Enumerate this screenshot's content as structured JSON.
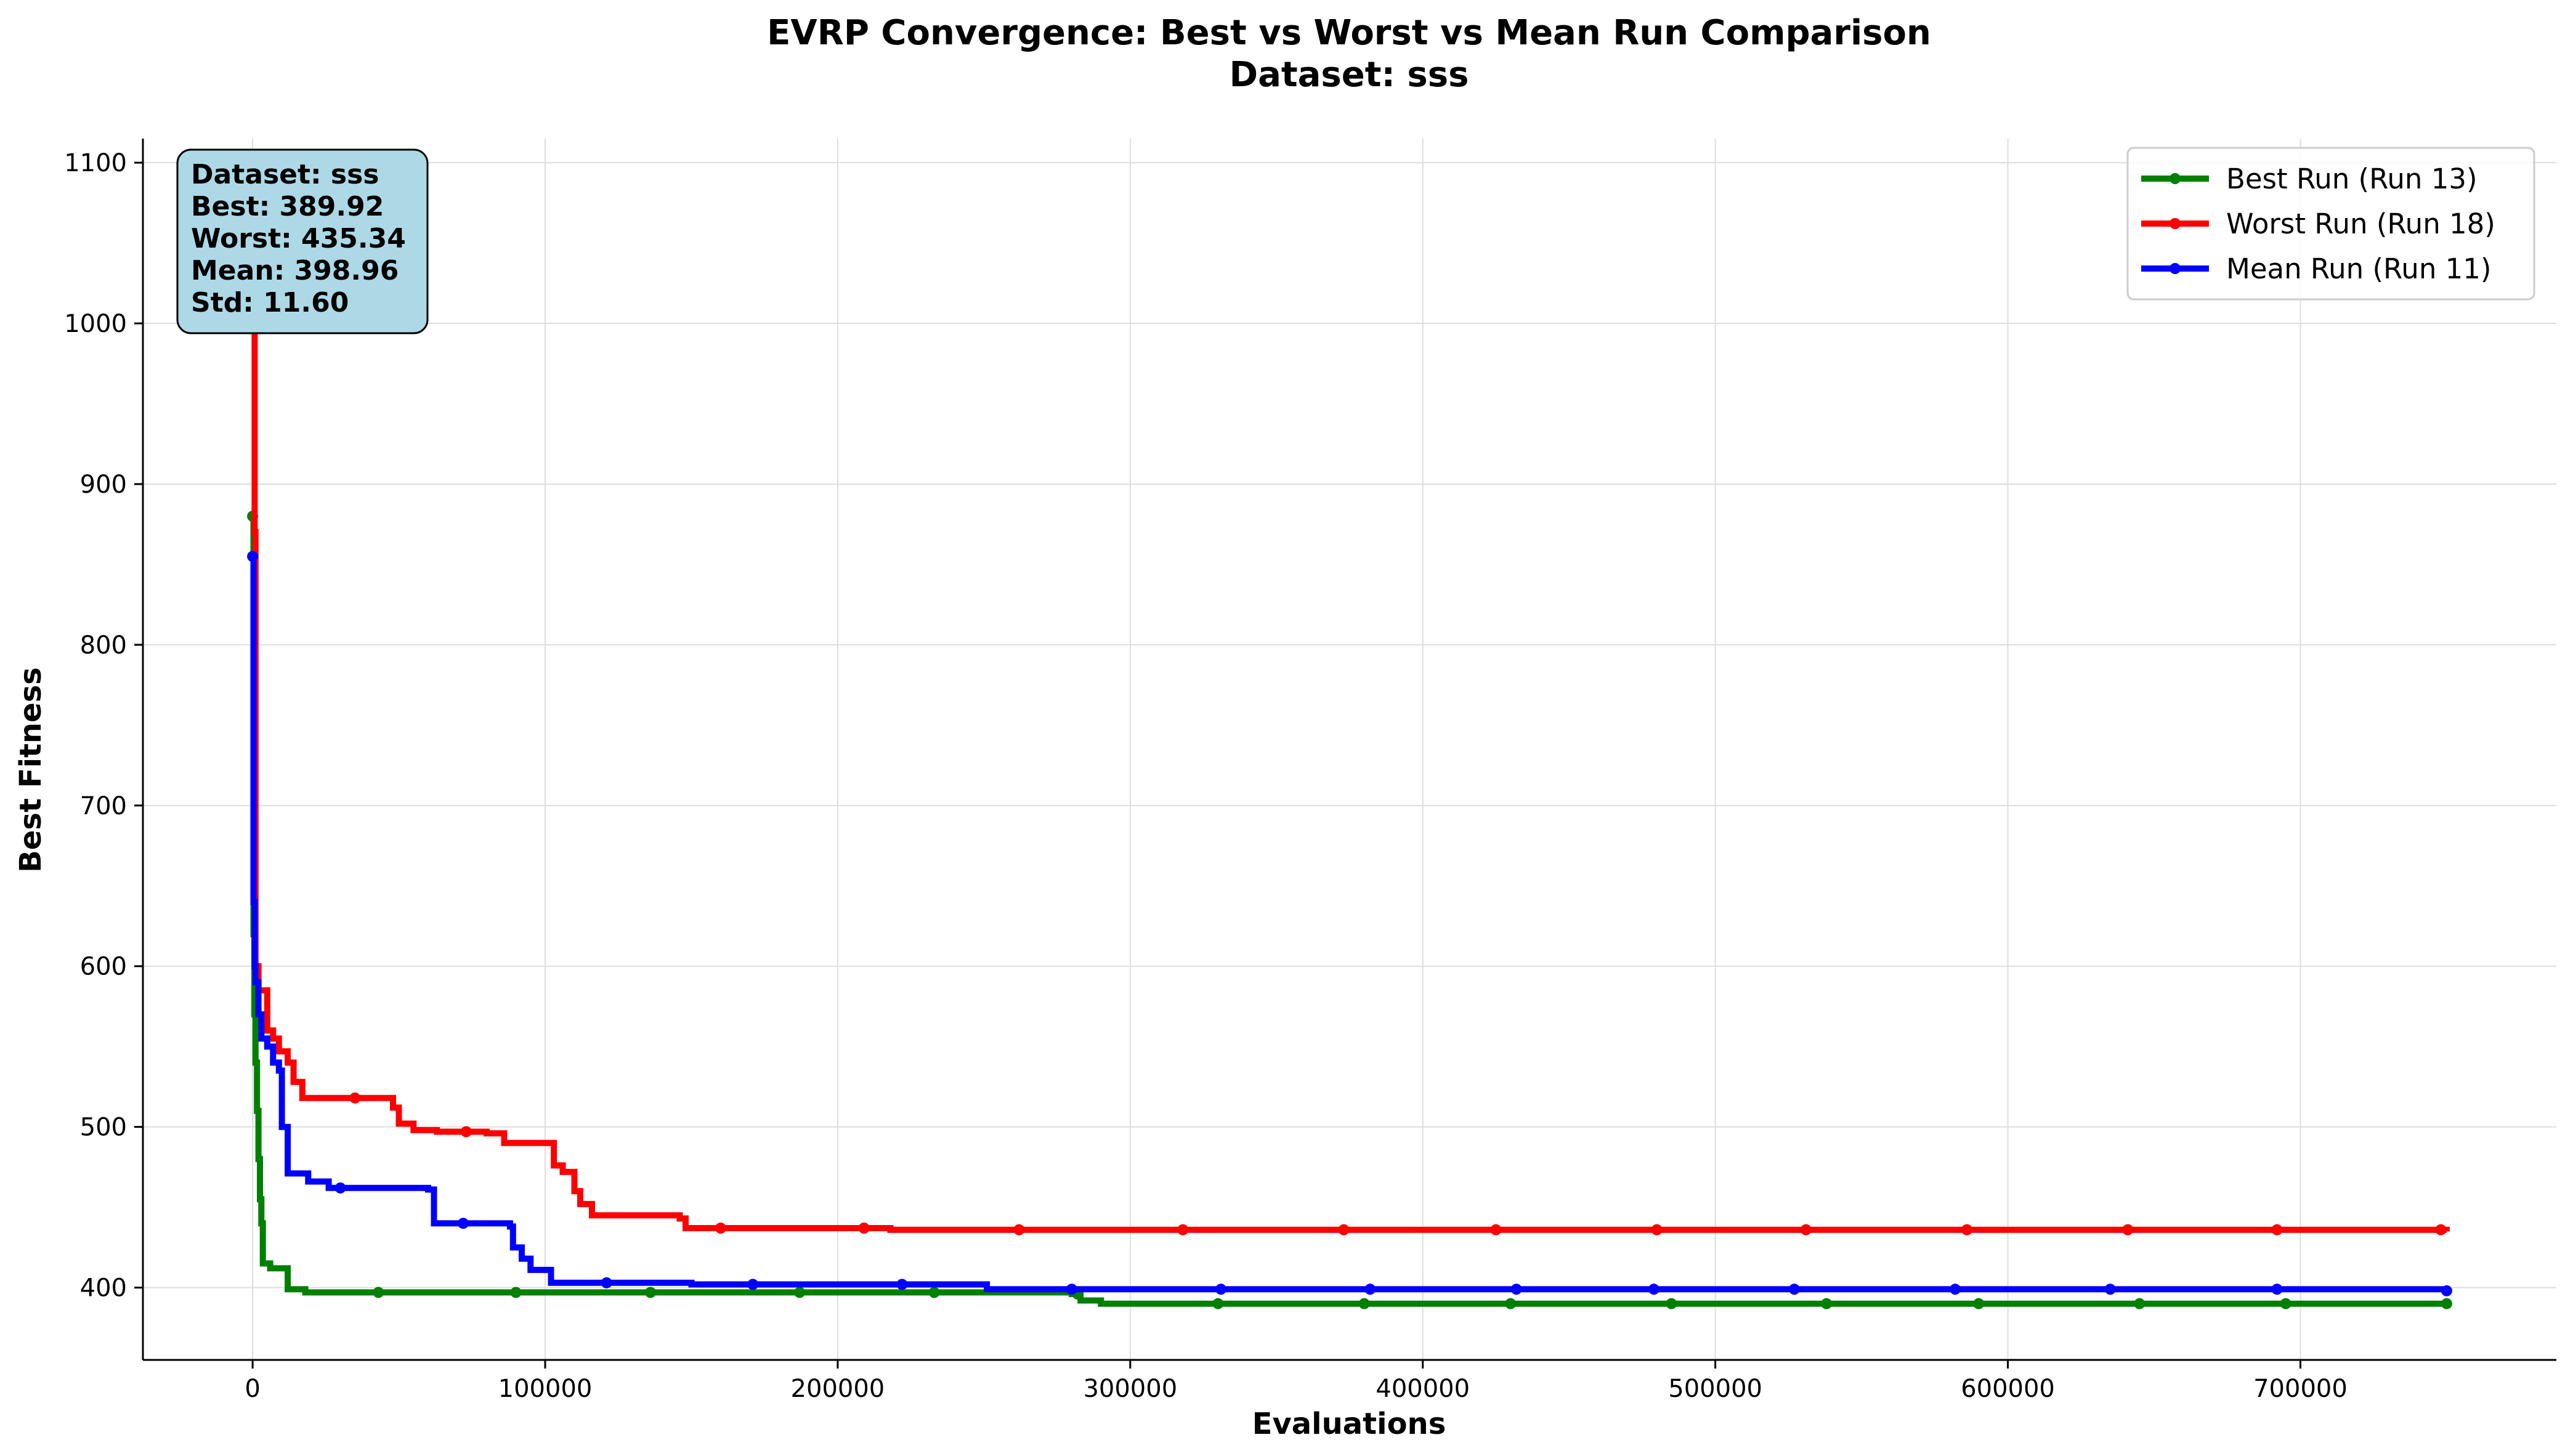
{
  "chart_data": {
    "type": "line",
    "title": "EVRP Convergence: Best vs Worst vs Mean Run Comparison",
    "subtitle": "Dataset: sss",
    "xlabel": "Evaluations",
    "ylabel": "Best Fitness",
    "xlim": [
      -37500,
      787500
    ],
    "ylim": [
      355,
      1115
    ],
    "xticks": [
      0,
      100000,
      200000,
      300000,
      400000,
      500000,
      600000,
      700000
    ],
    "yticks": [
      400,
      500,
      600,
      700,
      800,
      900,
      1000,
      1100
    ],
    "grid": true,
    "legend_position": "top-right",
    "stats_box": {
      "lines": [
        "Dataset: sss",
        "Best: 389.92",
        "Worst: 435.34",
        "Mean: 398.96",
        "Std: 11.60"
      ],
      "background": "#add8e6"
    },
    "series": [
      {
        "name": "Best Run (Run 13)",
        "color": "#008000",
        "points": [
          [
            0,
            880
          ],
          [
            300,
            620
          ],
          [
            600,
            570
          ],
          [
            1000,
            540
          ],
          [
            1500,
            510
          ],
          [
            2000,
            480
          ],
          [
            2500,
            455
          ],
          [
            3000,
            440
          ],
          [
            3500,
            415
          ],
          [
            6000,
            412
          ],
          [
            12000,
            399
          ],
          [
            18000,
            397
          ],
          [
            60000,
            397
          ],
          [
            150000,
            397
          ],
          [
            220000,
            397
          ],
          [
            280000,
            396
          ],
          [
            283000,
            392
          ],
          [
            290000,
            390
          ],
          [
            750000,
            390
          ]
        ],
        "markers_x": [
          0,
          43000,
          90000,
          136000,
          187000,
          233000,
          282000,
          330000,
          380000,
          430000,
          485000,
          538000,
          590000,
          645000,
          695000,
          750000
        ]
      },
      {
        "name": "Worst Run (Run 18)",
        "color": "#ff0000",
        "points": [
          [
            0,
            1090
          ],
          [
            300,
            1010
          ],
          [
            700,
            870
          ],
          [
            1000,
            600
          ],
          [
            2000,
            585
          ],
          [
            4000,
            585
          ],
          [
            5000,
            560
          ],
          [
            7000,
            555
          ],
          [
            9000,
            547
          ],
          [
            12000,
            540
          ],
          [
            14000,
            528
          ],
          [
            17000,
            518
          ],
          [
            46000,
            518
          ],
          [
            48000,
            512
          ],
          [
            50000,
            502
          ],
          [
            55000,
            498
          ],
          [
            63000,
            497
          ],
          [
            80000,
            496
          ],
          [
            86000,
            490
          ],
          [
            102000,
            490
          ],
          [
            103000,
            476
          ],
          [
            106000,
            472
          ],
          [
            110000,
            460
          ],
          [
            112000,
            452
          ],
          [
            116000,
            445
          ],
          [
            146000,
            443
          ],
          [
            148000,
            437
          ],
          [
            200000,
            437
          ],
          [
            218000,
            436
          ],
          [
            750000,
            435
          ]
        ],
        "markers_x": [
          0,
          35000,
          73000,
          160000,
          209000,
          262000,
          318000,
          373000,
          425000,
          480000,
          531000,
          586000,
          641000,
          692000,
          748000
        ]
      },
      {
        "name": "Mean Run (Run 11)",
        "color": "#0000ff",
        "points": [
          [
            0,
            855
          ],
          [
            300,
            640
          ],
          [
            700,
            600
          ],
          [
            1000,
            590
          ],
          [
            2000,
            570
          ],
          [
            3000,
            555
          ],
          [
            5000,
            550
          ],
          [
            7000,
            540
          ],
          [
            9000,
            535
          ],
          [
            10000,
            500
          ],
          [
            12000,
            471
          ],
          [
            19000,
            466
          ],
          [
            26000,
            462
          ],
          [
            60000,
            461
          ],
          [
            62000,
            440
          ],
          [
            80000,
            440
          ],
          [
            88000,
            438
          ],
          [
            89000,
            425
          ],
          [
            92000,
            418
          ],
          [
            95000,
            411
          ],
          [
            102000,
            403
          ],
          [
            150000,
            402
          ],
          [
            250000,
            402
          ],
          [
            251000,
            399
          ],
          [
            750000,
            398
          ]
        ],
        "markers_x": [
          0,
          30000,
          72000,
          121000,
          171000,
          222000,
          280000,
          331000,
          382000,
          432000,
          479000,
          527000,
          582000,
          635000,
          692000,
          750000
        ]
      }
    ]
  }
}
